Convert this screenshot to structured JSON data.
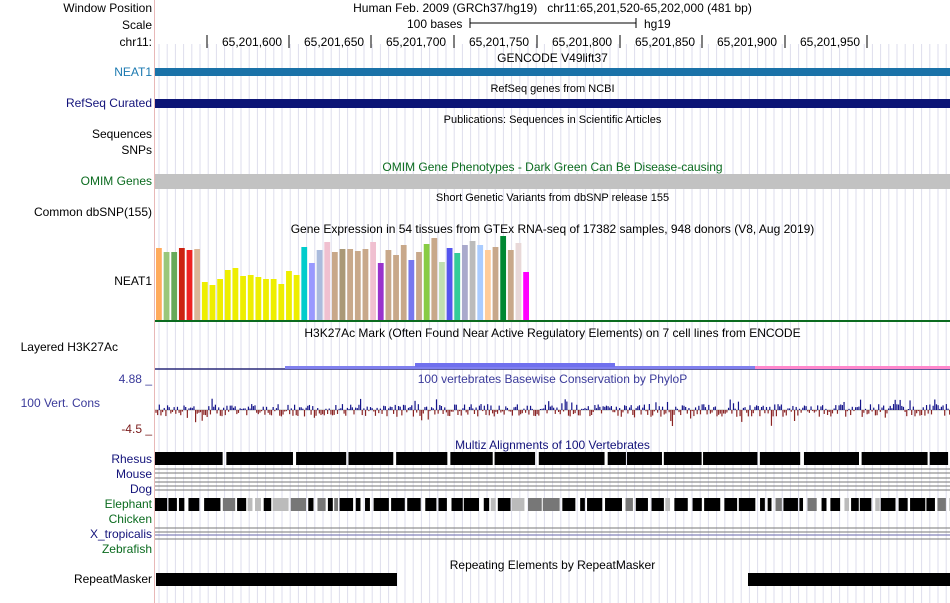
{
  "header": {
    "window_position_label": "Window Position",
    "scale_label": "Scale",
    "chrom_label": "chr11:",
    "assembly": "Human Feb. 2009 (GRCh37/hg19)",
    "position": "chr11:65,201,520-65,202,000 (481 bp)",
    "scale_text": "100 bases",
    "scale_db": "hg19",
    "ruler_ticks": [
      "65,201,600",
      "65,201,650",
      "65,201,700",
      "65,201,750",
      "65,201,800",
      "65,201,850",
      "65,201,900",
      "65,201,950"
    ]
  },
  "tracks": {
    "gencode": {
      "title": "GENCODE V49lift37",
      "label": "NEAT1",
      "color": "#1a72a8"
    },
    "refseq": {
      "title": "RefSeq genes from NCBI",
      "label": "RefSeq Curated",
      "color": "#0c1576"
    },
    "publications": {
      "title": "Publications: Sequences in Scientific Articles",
      "label_seq": "Sequences",
      "label_snps": "SNPs"
    },
    "omim": {
      "title": "OMIM Gene Phenotypes - Dark Green Can Be Disease-causing",
      "label": "OMIM Genes",
      "color": "#c2c2c2"
    },
    "dbsnp": {
      "title": "Short Genetic Variants from dbSNP release 155",
      "label": "Common dbSNP(155)"
    },
    "gtex": {
      "title": "Gene Expression in 54 tissues from GTEx RNA-seq of 17382 samples, 948 donors (V8, Aug 2019)",
      "label": "NEAT1",
      "bars": [
        {
          "v": 72,
          "c": "#ffab5c"
        },
        {
          "v": 68,
          "c": "#99c77a"
        },
        {
          "v": 68,
          "c": "#66aa5a"
        },
        {
          "v": 72,
          "c": "#cc2211"
        },
        {
          "v": 70,
          "c": "#ee2222"
        },
        {
          "v": 71,
          "c": "#dbb698"
        },
        {
          "v": 38,
          "c": "#eeee00"
        },
        {
          "v": 35,
          "c": "#eeee00"
        },
        {
          "v": 41,
          "c": "#eeee00"
        },
        {
          "v": 50,
          "c": "#eeee00"
        },
        {
          "v": 52,
          "c": "#eeee00"
        },
        {
          "v": 44,
          "c": "#eeee00"
        },
        {
          "v": 45,
          "c": "#eeee00"
        },
        {
          "v": 43,
          "c": "#eeee00"
        },
        {
          "v": 41,
          "c": "#eeee00"
        },
        {
          "v": 41,
          "c": "#eeee00"
        },
        {
          "v": 36,
          "c": "#eeee00"
        },
        {
          "v": 49,
          "c": "#eeee00"
        },
        {
          "v": 45,
          "c": "#eeee00"
        },
        {
          "v": 73,
          "c": "#00cccc"
        },
        {
          "v": 57,
          "c": "#9999ff"
        },
        {
          "v": 70,
          "c": "#aabbdd"
        },
        {
          "v": 78,
          "c": "#f0c0d0"
        },
        {
          "v": 68,
          "c": "#c8a88a"
        },
        {
          "v": 71,
          "c": "#aa9977"
        },
        {
          "v": 71,
          "c": "#c8a88a"
        },
        {
          "v": 69,
          "c": "#c8a88a"
        },
        {
          "v": 71,
          "c": "#c8a88a"
        },
        {
          "v": 78,
          "c": "#f0c0d0"
        },
        {
          "v": 57,
          "c": "#9933cc"
        },
        {
          "v": 70,
          "c": "#c8a88a"
        },
        {
          "v": 65,
          "c": "#c8a88a"
        },
        {
          "v": 75,
          "c": "#c8a88a"
        },
        {
          "v": 60,
          "c": "#7777ee"
        },
        {
          "v": 68,
          "c": "#c8a88a"
        },
        {
          "v": 76,
          "c": "#88cc44"
        },
        {
          "v": 82,
          "c": "#c8a88a"
        },
        {
          "v": 58,
          "c": "#c0e0b0"
        },
        {
          "v": 72,
          "c": "#5555ee"
        },
        {
          "v": 67,
          "c": "#33cc99"
        },
        {
          "v": 75,
          "c": "#aaaacc"
        },
        {
          "v": 79,
          "c": "#bbbbbb"
        },
        {
          "v": 75,
          "c": "#aaccff"
        },
        {
          "v": 70,
          "c": "#ffcc99"
        },
        {
          "v": 73,
          "c": "#c8a88a"
        },
        {
          "v": 84,
          "c": "#008833"
        },
        {
          "v": 70,
          "c": "#c8a88a"
        },
        {
          "v": 77,
          "c": "#e8d8d8"
        },
        {
          "v": 48,
          "c": "#ff00ff"
        }
      ]
    },
    "h3k27ac": {
      "title": "H3K27Ac Mark (Often Found Near Active Regulatory Elements) on 7 cell lines from ENCODE",
      "label": "Layered H3K27Ac"
    },
    "phylop": {
      "title": "100 vertebrates Basewise Conservation by PhyloP",
      "label": "100 Vert. Cons",
      "max": "4.88 _",
      "min": "-4.5 _"
    },
    "multiz": {
      "title": "Multiz Alignments of 100 Vertebrates",
      "species": [
        {
          "name": "Rhesus",
          "color": "#12127a"
        },
        {
          "name": "Mouse",
          "color": "#12127a"
        },
        {
          "name": "Dog",
          "color": "#12127a"
        },
        {
          "name": "Elephant",
          "color": "#0b6b1f"
        },
        {
          "name": "Chicken",
          "color": "#0b6b1f"
        },
        {
          "name": "X_tropicalis",
          "color": "#12127a"
        },
        {
          "name": "Zebrafish",
          "color": "#0b6b1f"
        }
      ]
    },
    "repeatmasker": {
      "title": "Repeating Elements by RepeatMasker",
      "label": "RepeatMasker"
    }
  }
}
